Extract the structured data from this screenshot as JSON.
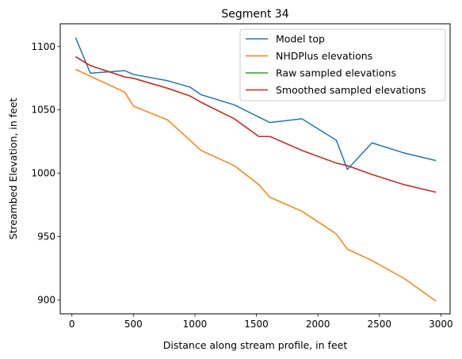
{
  "chart_data": {
    "type": "line",
    "title": "Segment 34",
    "xlabel": "Distance along stream profile, in feet",
    "ylabel": "Streambed Elevation, in feet",
    "xlim": [
      -95,
      3075
    ],
    "ylim": [
      889,
      1118
    ],
    "xticks": [
      0,
      500,
      1000,
      1500,
      2000,
      2500,
      3000
    ],
    "yticks": [
      900,
      950,
      1000,
      1050,
      1100
    ],
    "legend_position": "top-right",
    "grid": false,
    "series": [
      {
        "name": "Model top",
        "color": "#1f77b4",
        "x": [
          30,
          150,
          290,
          430,
          500,
          780,
          960,
          1050,
          1320,
          1610,
          1870,
          2150,
          2240,
          2440,
          2700,
          2960
        ],
        "y": [
          1107,
          1079,
          1080,
          1081,
          1078,
          1073,
          1068,
          1062,
          1054,
          1040,
          1043,
          1026,
          1003,
          1024,
          1016,
          1010
        ]
      },
      {
        "name": "NHDPlus elevations",
        "color": "#ff7f0e",
        "x": [
          30,
          430,
          500,
          780,
          960,
          1050,
          1320,
          1520,
          1610,
          1870,
          2150,
          2240,
          2440,
          2700,
          2960
        ],
        "y": [
          1082,
          1064,
          1053,
          1042,
          1026,
          1018,
          1006,
          991,
          981,
          970,
          952,
          940,
          931,
          917,
          899
        ]
      },
      {
        "name": "Raw sampled elevations",
        "color": "#2ca02c",
        "x": [
          30,
          150,
          430,
          500,
          780,
          960,
          1050,
          1320,
          1520,
          1610,
          1870,
          2150,
          2240,
          2440,
          2700,
          2960
        ],
        "y": [
          1092,
          1085,
          1076,
          1075,
          1067,
          1061,
          1056,
          1043,
          1029,
          1029,
          1018,
          1008,
          1006,
          999,
          991,
          985
        ]
      },
      {
        "name": "Smoothed sampled elevations",
        "color": "#d62728",
        "x": [
          30,
          150,
          430,
          500,
          780,
          960,
          1050,
          1320,
          1520,
          1610,
          1870,
          2150,
          2240,
          2440,
          2700,
          2960
        ],
        "y": [
          1092,
          1085,
          1076,
          1075,
          1067,
          1061,
          1056,
          1043,
          1029,
          1029,
          1018,
          1008,
          1006,
          999,
          991,
          985
        ]
      }
    ]
  }
}
